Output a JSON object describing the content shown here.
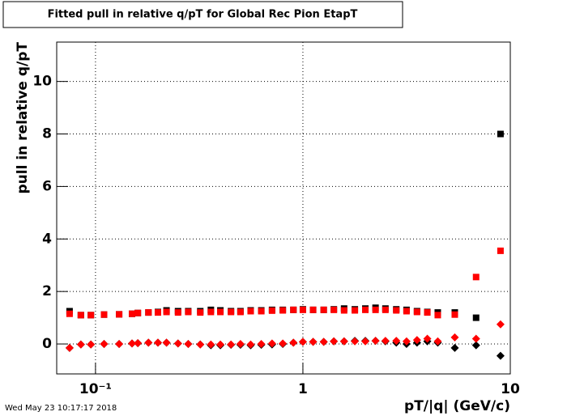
{
  "chart_data": {
    "type": "scatter",
    "title": "Fitted pull in relative q/pT for Global Rec Pion EtapT",
    "x_label": "pT/|q| (GeV/c)",
    "y_label": "pull in relative q/pT",
    "timestamp": "Wed May 23 10:17:17 2018",
    "log_x": true,
    "grid": true,
    "xlim": [
      0.065,
      10.0
    ],
    "ylim": [
      -1.14,
      11.5
    ],
    "xticks": [
      {
        "value": 0.1,
        "label": "10⁻¹"
      },
      1,
      10
    ],
    "yticks": [
      0,
      2,
      4,
      6,
      8,
      10
    ],
    "x": [
      0.075,
      0.085,
      0.095,
      0.11,
      0.13,
      0.15,
      0.16,
      0.18,
      0.2,
      0.22,
      0.25,
      0.28,
      0.32,
      0.36,
      0.4,
      0.45,
      0.5,
      0.56,
      0.63,
      0.71,
      0.8,
      0.9,
      1.0,
      1.12,
      1.26,
      1.41,
      1.58,
      1.78,
      2.0,
      2.24,
      2.5,
      2.82,
      3.16,
      3.55,
      3.98,
      4.47,
      5.4,
      6.84,
      8.97
    ],
    "series": [
      {
        "color": "#000000",
        "marker": "square",
        "values": [
          1.25,
          1.1,
          1.1,
          1.12,
          1.13,
          1.15,
          1.18,
          1.2,
          1.22,
          1.28,
          1.25,
          1.25,
          1.25,
          1.3,
          1.28,
          1.25,
          1.25,
          1.28,
          1.28,
          1.3,
          1.3,
          1.3,
          1.32,
          1.3,
          1.3,
          1.32,
          1.35,
          1.32,
          1.35,
          1.38,
          1.35,
          1.32,
          1.3,
          1.25,
          1.22,
          1.2,
          1.2,
          1.0,
          8.0
        ]
      },
      {
        "color": "#ff0000",
        "marker": "square",
        "values": [
          1.15,
          1.1,
          1.1,
          1.12,
          1.13,
          1.15,
          1.18,
          1.2,
          1.2,
          1.22,
          1.2,
          1.22,
          1.2,
          1.22,
          1.22,
          1.22,
          1.22,
          1.25,
          1.25,
          1.27,
          1.28,
          1.3,
          1.3,
          1.3,
          1.3,
          1.3,
          1.28,
          1.28,
          1.3,
          1.3,
          1.3,
          1.28,
          1.25,
          1.22,
          1.2,
          1.1,
          1.12,
          2.55,
          3.55
        ]
      },
      {
        "color": "#000000",
        "marker": "diamond",
        "values": [
          -0.15,
          -0.02,
          -0.02,
          0.0,
          0.0,
          0.02,
          0.03,
          0.05,
          0.05,
          0.05,
          0.02,
          0.0,
          -0.02,
          -0.05,
          -0.05,
          -0.03,
          -0.03,
          -0.05,
          -0.03,
          -0.02,
          0.0,
          0.05,
          0.08,
          0.08,
          0.08,
          0.1,
          0.1,
          0.12,
          0.12,
          0.12,
          0.1,
          0.05,
          0.0,
          0.05,
          0.1,
          0.05,
          -0.15,
          -0.05,
          -0.45
        ]
      },
      {
        "color": "#ff0000",
        "marker": "diamond",
        "values": [
          -0.15,
          -0.02,
          -0.02,
          0.0,
          0.0,
          0.02,
          0.03,
          0.05,
          0.05,
          0.05,
          0.02,
          0.0,
          -0.02,
          -0.02,
          -0.02,
          -0.02,
          0.0,
          -0.02,
          0.0,
          0.02,
          0.02,
          0.05,
          0.08,
          0.08,
          0.08,
          0.1,
          0.1,
          0.1,
          0.1,
          0.12,
          0.12,
          0.12,
          0.1,
          0.15,
          0.2,
          0.1,
          0.25,
          0.2,
          0.75
        ]
      }
    ]
  }
}
